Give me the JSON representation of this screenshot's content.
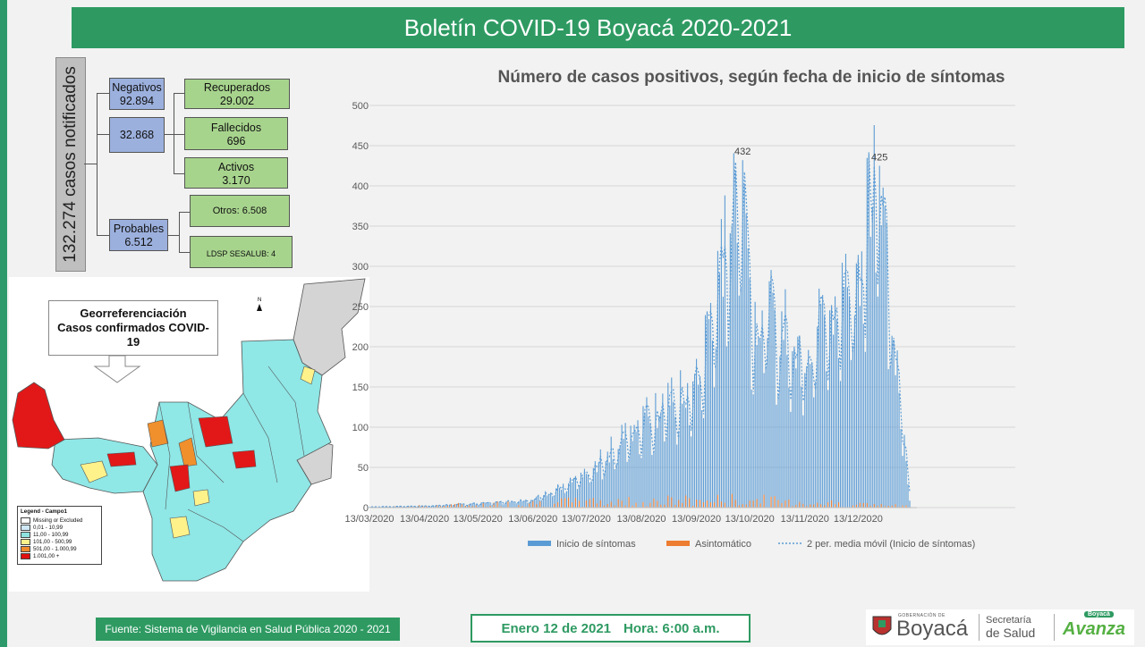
{
  "header": {
    "title": "Boletín COVID-19 Boyacá 2020-2021"
  },
  "summary": {
    "total_label": "132.274  casos notificados",
    "negativos_label": "Negativos",
    "negativos_value": "92.894",
    "confirmados_value": "32.868",
    "recuperados_label": "Recuperados",
    "recuperados_value": "29.002",
    "fallecidos_label": "Fallecidos",
    "fallecidos_value": "696",
    "activos_label": "Activos",
    "activos_value": "3.170",
    "probables_label": "Probables",
    "probables_value": "6.512",
    "otros_label": "Otros: 6.508",
    "ldsp_label": "LDSP SESALUB: 4"
  },
  "map": {
    "callout_line1": "Georreferenciación",
    "callout_line2": "Casos confirmados COVID-",
    "callout_line3": "19",
    "north_label": "N",
    "legend_title": "Legend - Campo1",
    "legend": [
      {
        "label": "Missing or Excluded",
        "color": "#ffffff"
      },
      {
        "label": "0,01 - 10,99",
        "color": "#cfe8f7"
      },
      {
        "label": "11,00 - 100,99",
        "color": "#8fe2e0"
      },
      {
        "label": "101,00 - 500,99",
        "color": "#fff08a"
      },
      {
        "label": "501,00 - 1.000,99",
        "color": "#f08a2c"
      },
      {
        "label": "1.001,00 +",
        "color": "#e01010"
      }
    ],
    "colors": {
      "missing": "#d4d4d4",
      "low": "#8fe7e6",
      "mid": "#fff28a",
      "high": "#f0902c",
      "top": "#e21818"
    }
  },
  "chart_data": {
    "type": "bar",
    "title": "Número de casos positivos, según fecha de inicio de síntomas",
    "xlabel": "",
    "ylabel": "",
    "ylim": [
      0,
      500
    ],
    "yticks": [
      0,
      50,
      100,
      150,
      200,
      250,
      300,
      350,
      400,
      450,
      500
    ],
    "xticks": [
      "13/03/2020",
      "13/04/2020",
      "13/05/2020",
      "13/06/2020",
      "13/07/2020",
      "13/08/2020",
      "13/09/2020",
      "13/10/2020",
      "13/11/2020",
      "13/12/2020"
    ],
    "x_range": [
      "13/03/2020",
      "11/01/2021"
    ],
    "grid": true,
    "legend_position": "bottom",
    "series": [
      {
        "name": "Inicio de síntomas",
        "kind": "bar",
        "color": "#5b9bd5",
        "approx_trend": [
          [
            "13/03/2020",
            1
          ],
          [
            "13/04/2020",
            2
          ],
          [
            "13/05/2020",
            5
          ],
          [
            "13/06/2020",
            10
          ],
          [
            "13/07/2020",
            40
          ],
          [
            "13/08/2020",
            110
          ],
          [
            "13/09/2020",
            150
          ],
          [
            "13/10/2020",
            260
          ],
          [
            "09/10/2020",
            432
          ],
          [
            "13/11/2020",
            200
          ],
          [
            "13/12/2020",
            300
          ],
          [
            "25/12/2020",
            425
          ],
          [
            "11/01/2021",
            10
          ]
        ]
      },
      {
        "name": "Asintomático",
        "kind": "bar",
        "color": "#ed7d31",
        "approx_trend": [
          [
            "13/03/2020",
            0
          ],
          [
            "25/05/2020",
            15
          ],
          [
            "13/06/2020",
            20
          ],
          [
            "13/08/2020",
            25
          ],
          [
            "13/10/2020",
            30
          ],
          [
            "11/01/2021",
            5
          ]
        ]
      },
      {
        "name": "2 per. media móvil (Inicio de síntomas)",
        "kind": "line",
        "color": "#5b9bd5"
      }
    ],
    "annotations": [
      {
        "date": "09/10/2020",
        "value": 432,
        "label": "432"
      },
      {
        "date": "25/12/2020",
        "value": 425,
        "label": "425"
      }
    ]
  },
  "footer": {
    "source": "Fuente: Sistema de Vigilancia en Salud Pública 2020 - 2021",
    "date": "Enero 12 de 2021",
    "time": "Hora: 6:00 a.m.",
    "logo_gob": "GOBERNACIÓN DE",
    "logo_boyaca": "Boyacá",
    "logo_secretaria": "Secretaría",
    "logo_salud": "de Salud",
    "logo_badge": "Boyacá",
    "logo_avanza": "Avanza"
  }
}
